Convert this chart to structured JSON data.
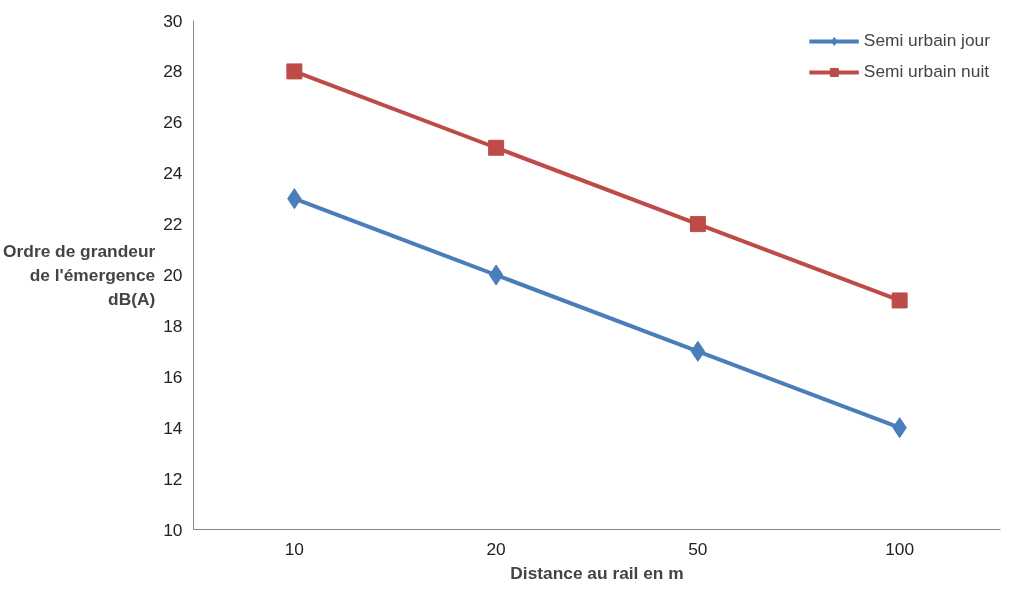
{
  "chart_data": {
    "type": "line",
    "xlabel": "Distance au rail en m",
    "ylabel": "Ordre de grandeur\nde l'émergence\ndB(A)",
    "categories": [
      "10",
      "20",
      "50",
      "100"
    ],
    "series": [
      {
        "name": "Semi urbain jour",
        "color": "#4a7ebb",
        "values": [
          23,
          20,
          17,
          14
        ],
        "marker": "diamond"
      },
      {
        "name": "Semi urbain nuit",
        "color": "#be4b48",
        "values": [
          28,
          25,
          22,
          19
        ],
        "marker": "square"
      }
    ],
    "ylim": [
      10,
      30
    ],
    "yticks": [
      10,
      12,
      14,
      16,
      18,
      20,
      22,
      24,
      26,
      28,
      30
    ],
    "grid": false,
    "legend": "top right",
    "line_style": "solid"
  }
}
